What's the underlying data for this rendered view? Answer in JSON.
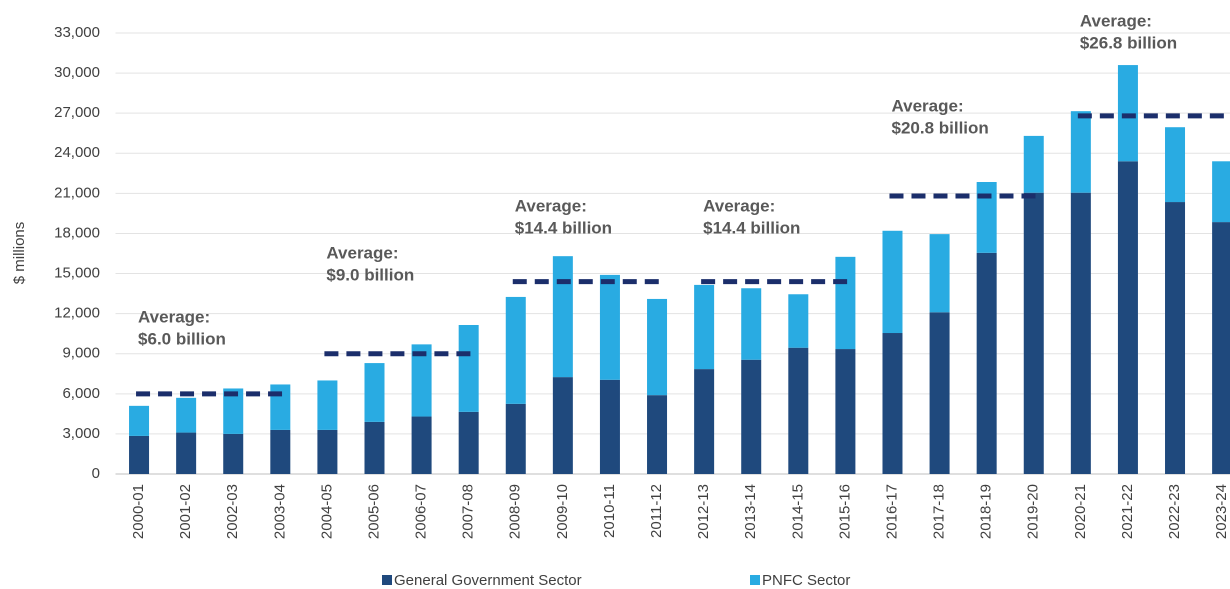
{
  "chart_data": {
    "type": "stacked_bar",
    "y_label": "$ millions",
    "categories": [
      "2000-01",
      "2001-02",
      "2002-03",
      "2003-04",
      "2004-05",
      "2005-06",
      "2006-07",
      "2007-08",
      "2008-09",
      "2009-10",
      "2010-11",
      "2011-12",
      "2012-13",
      "2013-14",
      "2014-15",
      "2015-16",
      "2016-17",
      "2017-18",
      "2018-19",
      "2019-20",
      "2020-21",
      "2021-22",
      "2022-23",
      "2023-24"
    ],
    "series": [
      {
        "name": "General Government Sector",
        "color": "#1f497d",
        "values": [
          2850,
          3100,
          3000,
          3300,
          3300,
          3900,
          4300,
          4650,
          5250,
          7250,
          7050,
          5900,
          7850,
          8550,
          9450,
          9350,
          10550,
          12100,
          16550,
          21050,
          21050,
          23400,
          20350,
          18850
        ]
      },
      {
        "name": "PNFC Sector",
        "color": "#29abe2",
        "values": [
          2250,
          2600,
          3400,
          3400,
          3700,
          4400,
          5400,
          6500,
          8000,
          9050,
          7850,
          7200,
          6300,
          5350,
          4000,
          6900,
          7650,
          5850,
          5300,
          4250,
          6100,
          7200,
          5600,
          4550
        ]
      }
    ],
    "averages": [
      {
        "label": "Average:",
        "value": 6000,
        "value_label": "$6.0 billion",
        "start": "2000-01",
        "end": "2003-04"
      },
      {
        "label": "Average:",
        "value": 9000,
        "value_label": "$9.0 billion",
        "start": "2004-05",
        "end": "2007-08"
      },
      {
        "label": "Average:",
        "value": 14400,
        "value_label": "$14.4 billion",
        "start": "2008-09",
        "end": "2011-12"
      },
      {
        "label": "Average:",
        "value": 14400,
        "value_label": "$14.4 billion",
        "start": "2012-13",
        "end": "2015-16"
      },
      {
        "label": "Average:",
        "value": 20800,
        "value_label": "$20.8 billion",
        "start": "2016-17",
        "end": "2019-20"
      },
      {
        "label": "Average:",
        "value": 26800,
        "value_label": "$26.8 billion",
        "start": "2020-21",
        "end": "2023-24"
      }
    ],
    "average_color": "#1b2e6b",
    "ylim": [
      0,
      33000
    ],
    "yticks": [
      0,
      {
        "value": 3000,
        "label": "3,000"
      },
      {
        "value": 6000,
        "label": "6,000"
      },
      {
        "value": 9000,
        "label": "9,000"
      },
      {
        "value": 12000,
        "label": "12,000"
      },
      {
        "value": 15000,
        "label": "15,000"
      },
      {
        "value": 18000,
        "label": "18,000"
      },
      {
        "value": 21000,
        "label": "21,000"
      },
      {
        "value": 24000,
        "label": "24,000"
      },
      {
        "value": 27000,
        "label": "27,000"
      },
      {
        "value": 30000,
        "label": "30,000"
      },
      {
        "value": 33000,
        "label": "33,000"
      }
    ],
    "grid": true,
    "legend": "bottom"
  }
}
